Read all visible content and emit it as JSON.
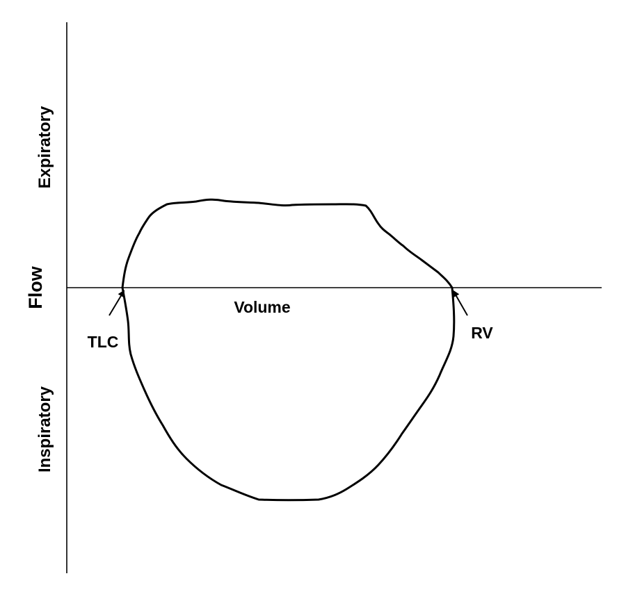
{
  "diagram": {
    "title": "",
    "y_axis_label": "Flow",
    "x_axis_label": "Volume",
    "upper_region_label": "Expiratory",
    "lower_region_label": "Inspiratory",
    "left_point_label": "TLC",
    "right_point_label": "RV",
    "line_color": "#000000",
    "background_color": "#ffffff"
  }
}
